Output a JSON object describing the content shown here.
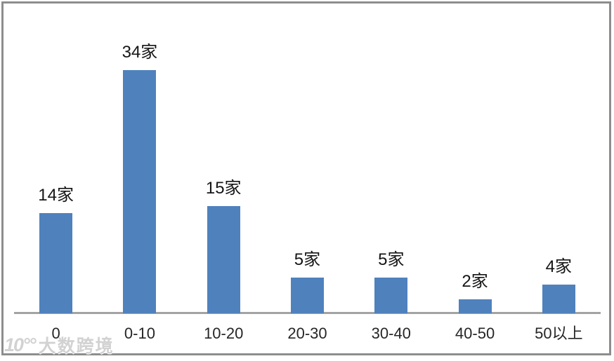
{
  "chart_data": {
    "type": "bar",
    "title": "",
    "xlabel": "",
    "ylabel": "",
    "categories": [
      "0",
      "0-10",
      "10-20",
      "20-30",
      "30-40",
      "40-50",
      "50以上"
    ],
    "values": [
      14,
      34,
      15,
      5,
      5,
      2,
      4
    ],
    "data_labels": [
      "14家",
      "34家",
      "15家",
      "5家",
      "5家",
      "2家",
      "4家"
    ],
    "unit_suffix": "家",
    "ylim": [
      0,
      40
    ],
    "grid": false,
    "legend": "none",
    "bar_color": "#4f81bd",
    "axis_color": "#a3a3a3"
  },
  "frame": {
    "border_color": "#8d8d8d",
    "background": "#ffffff"
  },
  "watermark": {
    "logo": "10°°",
    "text": "大数跨境"
  }
}
